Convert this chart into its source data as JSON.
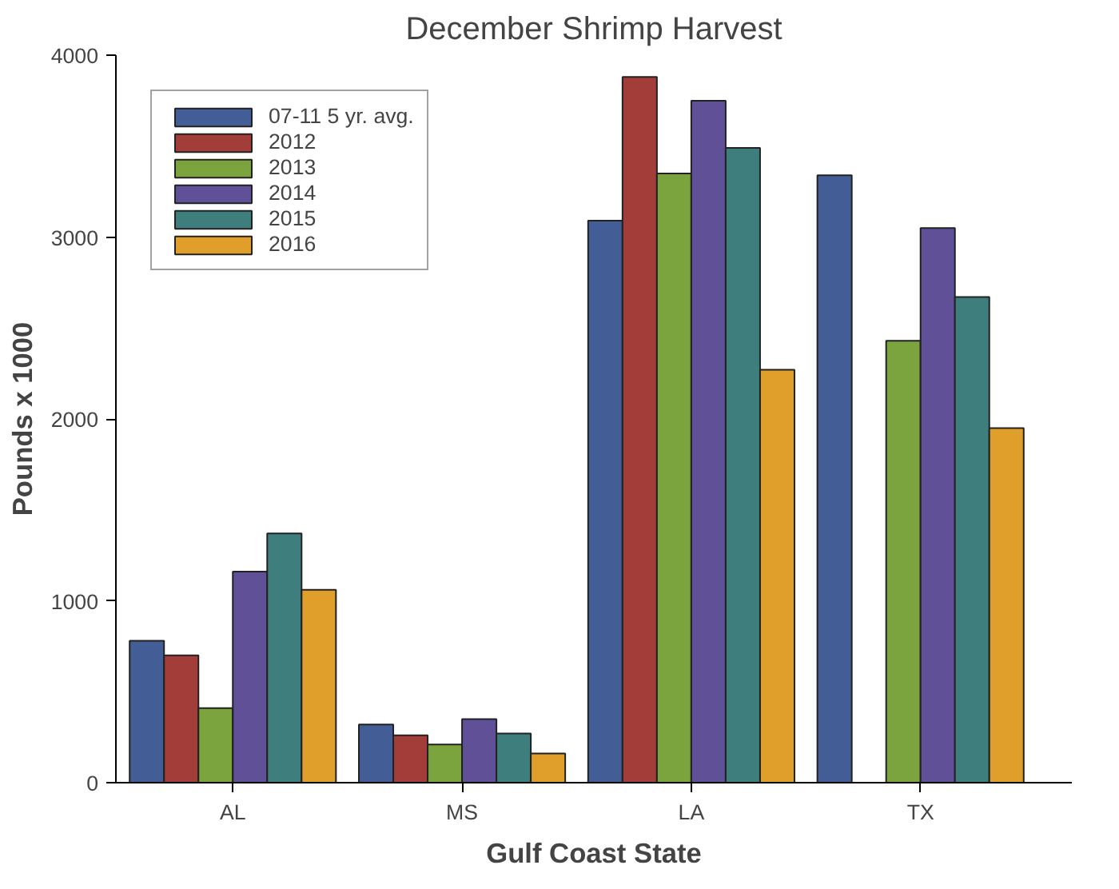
{
  "chart_data": {
    "type": "bar",
    "title": "December Shrimp Harvest",
    "xlabel": "Gulf Coast State",
    "ylabel": "Pounds x 1000",
    "categories": [
      "AL",
      "MS",
      "LA",
      "TX"
    ],
    "series": [
      {
        "name": "07-11 5 yr. avg.",
        "color": "#435e96",
        "values": [
          780,
          320,
          3090,
          3340
        ]
      },
      {
        "name": "2012",
        "color": "#a33d3a",
        "values": [
          700,
          260,
          3880,
          null
        ]
      },
      {
        "name": "2013",
        "color": "#7ba43f",
        "values": [
          410,
          210,
          3350,
          2430
        ]
      },
      {
        "name": "2014",
        "color": "#5f5098",
        "values": [
          1160,
          350,
          3750,
          3050
        ]
      },
      {
        "name": "2015",
        "color": "#3e7f7d",
        "values": [
          1370,
          270,
          3490,
          2670
        ]
      },
      {
        "name": "2016",
        "color": "#e09f2b",
        "values": [
          1060,
          160,
          2270,
          1950
        ]
      }
    ],
    "ylim": [
      0,
      4000
    ],
    "yticks": [
      0,
      1000,
      2000,
      3000,
      4000
    ],
    "legend": "top left"
  }
}
